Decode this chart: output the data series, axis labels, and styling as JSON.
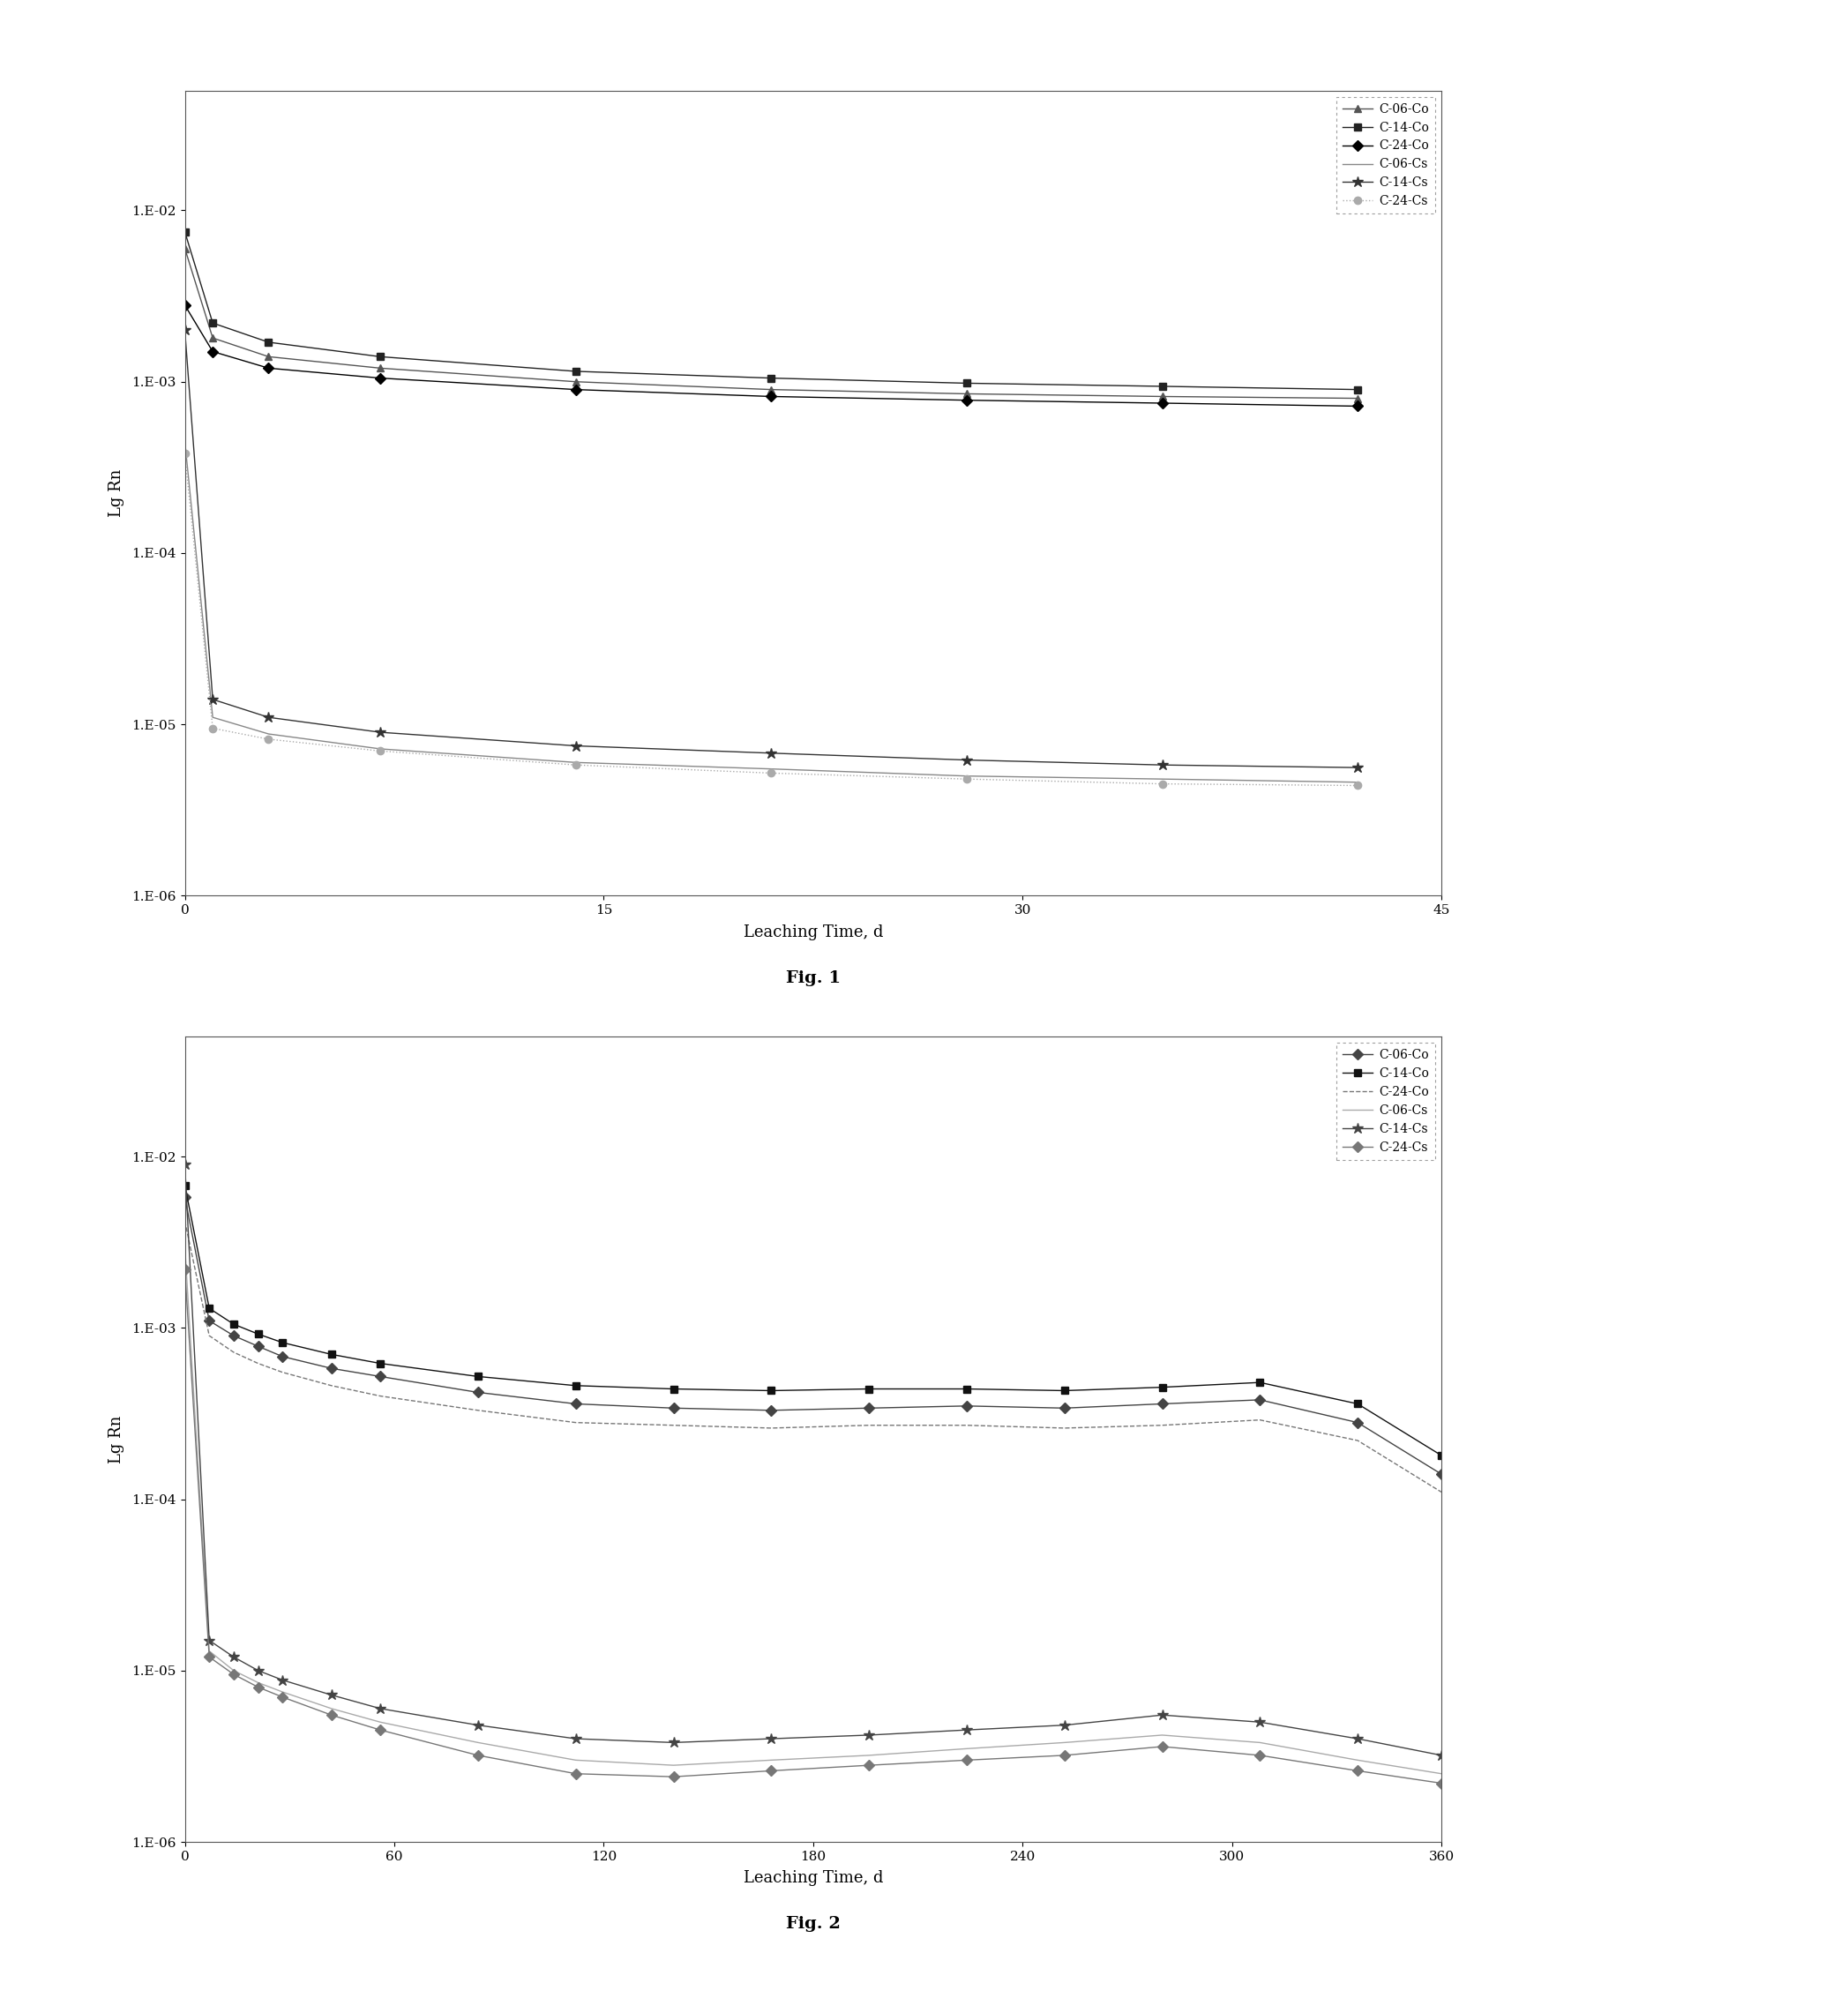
{
  "fig1": {
    "title": "Fig. 1",
    "xlabel": "Leaching Time, d",
    "ylabel": "Lg Rn",
    "xlim": [
      0,
      45
    ],
    "ylim_log": [
      1e-06,
      0.05
    ],
    "xticks": [
      0,
      15,
      30,
      45
    ],
    "series": {
      "C-06-Co": {
        "x": [
          0,
          1,
          3,
          7,
          14,
          21,
          28,
          35,
          42
        ],
        "y": [
          0.006,
          0.0018,
          0.0014,
          0.0012,
          0.001,
          0.0009,
          0.00085,
          0.00082,
          0.0008
        ],
        "marker": "^",
        "linestyle": "-",
        "color": "#555555"
      },
      "C-14-Co": {
        "x": [
          0,
          1,
          3,
          7,
          14,
          21,
          28,
          35,
          42
        ],
        "y": [
          0.0075,
          0.0022,
          0.0017,
          0.0014,
          0.00115,
          0.00105,
          0.00098,
          0.00094,
          0.0009
        ],
        "marker": "s",
        "linestyle": "-",
        "color": "#222222"
      },
      "C-24-Co": {
        "x": [
          0,
          1,
          3,
          7,
          14,
          21,
          28,
          35,
          42
        ],
        "y": [
          0.0028,
          0.0015,
          0.0012,
          0.00105,
          0.0009,
          0.00082,
          0.00078,
          0.00075,
          0.00072
        ],
        "marker": "D",
        "linestyle": "-",
        "color": "#000000"
      },
      "C-06-Cs": {
        "x": [
          0,
          1,
          3,
          7,
          14,
          21,
          28,
          35,
          42
        ],
        "y": [
          0.00045,
          1.1e-05,
          8.8e-06,
          7.2e-06,
          6e-06,
          5.5e-06,
          5e-06,
          4.8e-06,
          4.6e-06
        ],
        "marker": null,
        "linestyle": "-",
        "color": "#888888"
      },
      "C-14-Cs": {
        "x": [
          0,
          1,
          3,
          7,
          14,
          21,
          28,
          35,
          42
        ],
        "y": [
          0.002,
          1.4e-05,
          1.1e-05,
          9e-06,
          7.5e-06,
          6.8e-06,
          6.2e-06,
          5.8e-06,
          5.6e-06
        ],
        "marker": "*",
        "linestyle": "-",
        "color": "#333333"
      },
      "C-24-Cs": {
        "x": [
          0,
          1,
          3,
          7,
          14,
          21,
          28,
          35,
          42
        ],
        "y": [
          0.00038,
          9.5e-06,
          8.2e-06,
          7e-06,
          5.8e-06,
          5.2e-06,
          4.8e-06,
          4.5e-06,
          4.4e-06
        ],
        "marker": "o",
        "linestyle": ":",
        "color": "#aaaaaa"
      }
    }
  },
  "fig2": {
    "title": "Fig. 2",
    "xlabel": "Leaching Time, d",
    "ylabel": "Lg Rn",
    "xlim": [
      0,
      360
    ],
    "ylim_log": [
      1e-06,
      0.05
    ],
    "xticks": [
      0,
      60,
      120,
      180,
      240,
      300,
      360
    ],
    "series": {
      "C-06-Co": {
        "x": [
          0,
          7,
          14,
          21,
          28,
          42,
          56,
          84,
          112,
          140,
          168,
          196,
          224,
          252,
          280,
          308,
          336,
          360
        ],
        "y": [
          0.0058,
          0.0011,
          0.0009,
          0.00078,
          0.00068,
          0.00058,
          0.00052,
          0.00042,
          0.00036,
          0.00034,
          0.00033,
          0.00034,
          0.00035,
          0.00034,
          0.00036,
          0.00038,
          0.00028,
          0.00014
        ],
        "marker": "D",
        "linestyle": "-",
        "color": "#444444"
      },
      "C-14-Co": {
        "x": [
          0,
          7,
          14,
          21,
          28,
          42,
          56,
          84,
          112,
          140,
          168,
          196,
          224,
          252,
          280,
          308,
          336,
          360
        ],
        "y": [
          0.0068,
          0.0013,
          0.00105,
          0.00092,
          0.00082,
          0.0007,
          0.00062,
          0.00052,
          0.00046,
          0.00044,
          0.00043,
          0.00044,
          0.00044,
          0.00043,
          0.00045,
          0.00048,
          0.00036,
          0.00018
        ],
        "marker": "s",
        "linestyle": "-",
        "color": "#111111"
      },
      "C-24-Co": {
        "x": [
          0,
          7,
          14,
          21,
          28,
          42,
          56,
          84,
          112,
          140,
          168,
          196,
          224,
          252,
          280,
          308,
          336,
          360
        ],
        "y": [
          0.0042,
          0.0009,
          0.00072,
          0.00062,
          0.00055,
          0.00046,
          0.0004,
          0.00033,
          0.00028,
          0.00027,
          0.00026,
          0.00027,
          0.00027,
          0.00026,
          0.00027,
          0.00029,
          0.00022,
          0.00011
        ],
        "marker": null,
        "linestyle": "--",
        "color": "#777777"
      },
      "C-06-Cs": {
        "x": [
          0,
          7,
          14,
          21,
          28,
          42,
          56,
          84,
          112,
          140,
          168,
          196,
          224,
          252,
          280,
          308,
          336,
          360
        ],
        "y": [
          0.003,
          1.3e-05,
          1e-05,
          8.5e-06,
          7.5e-06,
          6e-06,
          5e-06,
          3.8e-06,
          3e-06,
          2.8e-06,
          3e-06,
          3.2e-06,
          3.5e-06,
          3.8e-06,
          4.2e-06,
          3.8e-06,
          3e-06,
          2.5e-06
        ],
        "marker": null,
        "linestyle": "-",
        "color": "#aaaaaa"
      },
      "C-14-Cs": {
        "x": [
          0,
          7,
          14,
          21,
          28,
          42,
          56,
          84,
          112,
          140,
          168,
          196,
          224,
          252,
          280,
          308,
          336,
          360
        ],
        "y": [
          0.009,
          1.5e-05,
          1.2e-05,
          1e-05,
          8.8e-06,
          7.2e-06,
          6e-06,
          4.8e-06,
          4e-06,
          3.8e-06,
          4e-06,
          4.2e-06,
          4.5e-06,
          4.8e-06,
          5.5e-06,
          5e-06,
          4e-06,
          3.2e-06
        ],
        "marker": "*",
        "linestyle": "-",
        "color": "#444444"
      },
      "C-24-Cs": {
        "x": [
          0,
          7,
          14,
          21,
          28,
          42,
          56,
          84,
          112,
          140,
          168,
          196,
          224,
          252,
          280,
          308,
          336,
          360
        ],
        "y": [
          0.0022,
          1.2e-05,
          9.5e-06,
          8e-06,
          7e-06,
          5.5e-06,
          4.5e-06,
          3.2e-06,
          2.5e-06,
          2.4e-06,
          2.6e-06,
          2.8e-06,
          3e-06,
          3.2e-06,
          3.6e-06,
          3.2e-06,
          2.6e-06,
          2.2e-06
        ],
        "marker": "D",
        "linestyle": "-",
        "color": "#777777"
      }
    }
  },
  "background_color": "#ffffff",
  "legend_fontsize": 10,
  "axis_label_fontsize": 13,
  "tick_fontsize": 11,
  "fig_title_fontsize": 14
}
